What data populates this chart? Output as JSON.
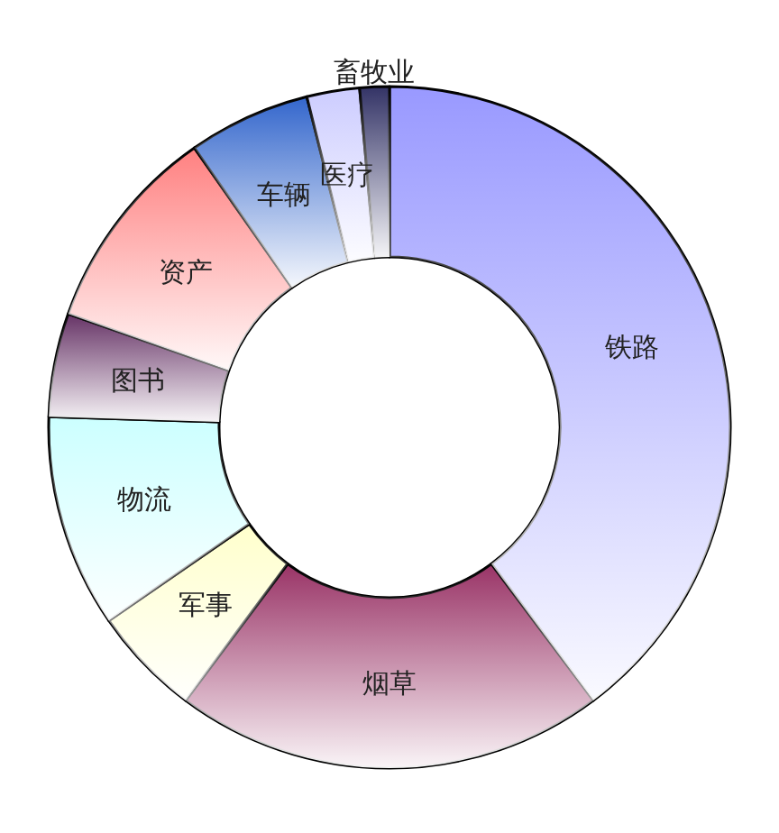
{
  "chart_data": {
    "type": "donut",
    "categories": [
      "铁路",
      "烟草",
      "军事",
      "物流",
      "图书",
      "资产",
      "车辆",
      "医疗",
      "畜牧业"
    ],
    "values": [
      39.8,
      20.4,
      5.2,
      10.1,
      4.9,
      9.9,
      5.8,
      2.5,
      1.4
    ],
    "colors": [
      "#9999ff",
      "#993366",
      "#ffffcc",
      "#ccffff",
      "#663366",
      "#ff8080",
      "#3366cc",
      "#ccccff",
      "#333366"
    ]
  }
}
